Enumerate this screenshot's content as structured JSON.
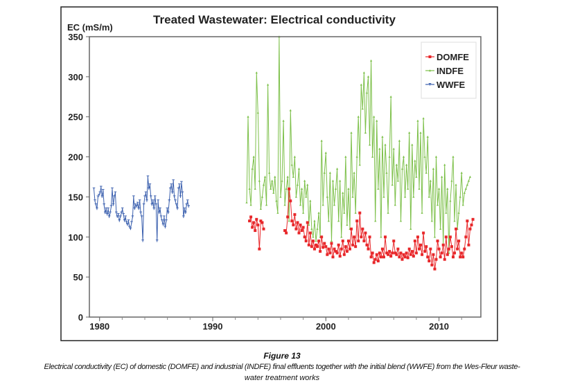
{
  "chart_data": {
    "type": "line",
    "title": "Treated Wastewater: Electrical conductivity",
    "ylabel": "EC (mS/m)",
    "xlabel": "",
    "ylim": [
      0,
      350
    ],
    "xlim": [
      1979.1,
      2013.7
    ],
    "yticks": [
      0,
      50,
      100,
      150,
      200,
      250,
      300,
      350
    ],
    "xticks": [
      1980,
      1990,
      2000,
      2010
    ],
    "grid": false,
    "legend_position": "top-right",
    "series": [
      {
        "name": "DOMFE",
        "color": "#e8272a",
        "marker": "square",
        "x_start": 1993.25,
        "x_step": 0.125,
        "values": [
          120,
          125,
          112,
          118,
          108,
          122,
          115,
          85,
          120,
          118,
          110,
          null,
          null,
          null,
          null,
          null,
          null,
          null,
          null,
          null,
          null,
          null,
          null,
          null,
          null,
          108,
          105,
          125,
          160,
          145,
          120,
          115,
          128,
          110,
          118,
          105,
          115,
          108,
          112,
          100,
          95,
          118,
          90,
          105,
          88,
          95,
          85,
          90,
          88,
          95,
          82,
          100,
          87,
          92,
          88,
          78,
          85,
          80,
          92,
          75,
          85,
          82,
          80,
          90,
          76,
          85,
          95,
          78,
          88,
          82,
          95,
          85,
          110,
          90,
          100,
          88,
          120,
          95,
          130,
          100,
          110,
          95,
          105,
          90,
          85,
          100,
          75,
          80,
          68,
          72,
          78,
          70,
          80,
          75,
          85,
          75,
          100,
          80,
          78,
          82,
          76,
          80,
          95,
          80,
          78,
          85,
          75,
          80,
          72,
          78,
          75,
          80,
          74,
          85,
          78,
          82,
          76,
          95,
          80,
          100,
          85,
          90,
          78,
          105,
          82,
          88,
          75,
          70,
          85,
          65,
          78,
          60,
          72,
          95,
          85,
          75,
          80,
          90,
          72,
          100,
          78,
          85,
          100,
          88,
          75,
          80,
          110,
          85,
          95,
          75,
          80,
          75,
          85,
          100,
          120,
          90,
          110,
          115,
          122
        ]
      },
      {
        "name": "INDFE",
        "color": "#7dc04a",
        "marker": "triangle",
        "x_start": 1993.0,
        "x_step": 0.125,
        "values": [
          143,
          250,
          160,
          140,
          185,
          200,
          160,
          305,
          255,
          170,
          135,
          150,
          165,
          175,
          140,
          290,
          180,
          160,
          170,
          155,
          175,
          145,
          130,
          360,
          150,
          170,
          245,
          140,
          160,
          175,
          120,
          258,
          190,
          175,
          200,
          150,
          165,
          185,
          140,
          160,
          130,
          170,
          150,
          165,
          115,
          145,
          110,
          100,
          120,
          95,
          110,
          130,
          100,
          220,
          140,
          180,
          205,
          150,
          120,
          180,
          95,
          170,
          140,
          160,
          185,
          120,
          170,
          100,
          155,
          130,
          200,
          115,
          160,
          110,
          230,
          150,
          180,
          130,
          200,
          250,
          190,
          290,
          260,
          305,
          230,
          280,
          300,
          215,
          320,
          200,
          250,
          120,
          245,
          160,
          210,
          100,
          225,
          150,
          215,
          180,
          130,
          200,
          275,
          165,
          210,
          140,
          190,
          170,
          220,
          120,
          185,
          200,
          150,
          190,
          160,
          230,
          110,
          215,
          150,
          195,
          175,
          245,
          160,
          230,
          130,
          248,
          200,
          180,
          225,
          150,
          170,
          120,
          185,
          100,
          200,
          140,
          160,
          110,
          175,
          90,
          190,
          130,
          160,
          80,
          145,
          170,
          200,
          120,
          165,
          110,
          130,
          150,
          180,
          140,
          155,
          160,
          165,
          170,
          175
        ]
      },
      {
        "name": "WWFE",
        "color": "#3a5fae",
        "marker": "tick",
        "x_start": 1979.5,
        "x_step": 0.09,
        "values": [
          160,
          145,
          140,
          135,
          150,
          152,
          155,
          162,
          150,
          158,
          140,
          130,
          135,
          128,
          135,
          125,
          130,
          138,
          160,
          140,
          150,
          155,
          130,
          125,
          128,
          120,
          125,
          130,
          135,
          128,
          120,
          125,
          118,
          115,
          120,
          112,
          110,
          118,
          125,
          150,
          135,
          140,
          138,
          142,
          135,
          145,
          130,
          125,
          95,
          140,
          150,
          155,
          145,
          175,
          160,
          165,
          150,
          140,
          145,
          135,
          150,
          140,
          95,
          145,
          130,
          135,
          125,
          120,
          115,
          125,
          112,
          120,
          135,
          130,
          145,
          160,
          165,
          155,
          170,
          150,
          145,
          140,
          135,
          160,
          165,
          150,
          168,
          155,
          125,
          135,
          130,
          140,
          145,
          138
        ]
      }
    ]
  },
  "caption": {
    "figure_label": "Figure 13",
    "line1": "Electrical conductivity (EC) of domestic (DOMFE) and industrial (INDFE) final effluents together with the initial blend (WWFE) from the Wes-Fleur waste-",
    "line2": "water treatment works"
  }
}
